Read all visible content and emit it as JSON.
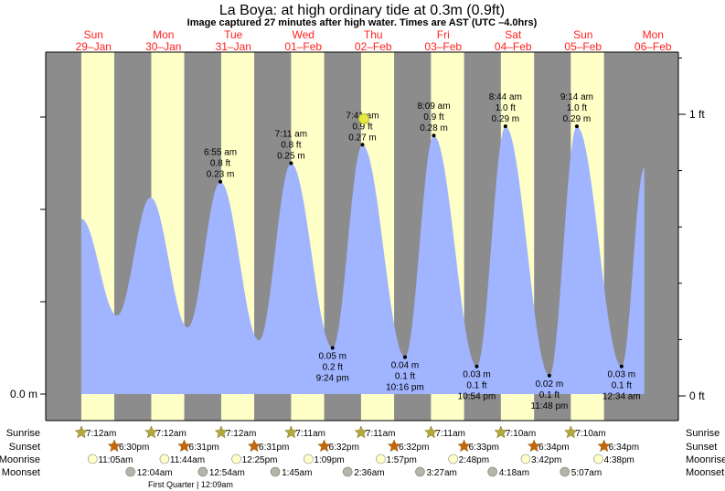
{
  "title": "La Boya: at high  ordinary tide at 0.3m (0.9ft)",
  "subtitle": "Image captured 27 minutes after high water. Times are AST (UTC –4.0hrs)",
  "colors": {
    "tide": "#a0b4ff",
    "night": "#8c8c8c",
    "day": "#ffffc8",
    "day_label": "#ff2020",
    "sunrise": "#b4aa3c",
    "sunset": "#c8640a",
    "moonrise": "#ffffc8",
    "moonset": "#b4b4aa",
    "now_marker": "#e6e646"
  },
  "days": [
    {
      "dow": "Sun",
      "date": "29–Jan"
    },
    {
      "dow": "Mon",
      "date": "30–Jan"
    },
    {
      "dow": "Tue",
      "date": "31–Jan"
    },
    {
      "dow": "Wed",
      "date": "01–Feb"
    },
    {
      "dow": "Thu",
      "date": "02–Feb"
    },
    {
      "dow": "Fri",
      "date": "03–Feb"
    },
    {
      "dow": "Sat",
      "date": "04–Feb"
    },
    {
      "dow": "Sun",
      "date": "05–Feb"
    },
    {
      "dow": "Mon",
      "date": "06–Feb"
    }
  ],
  "axes": {
    "left_label": "0.0 m",
    "right_top": "1 ft",
    "right_bottom": "0 ft"
  },
  "row_labels": {
    "sunrise": "Sunrise",
    "sunset": "Sunset",
    "moonrise": "Moonrise",
    "moonset": "Moonset"
  },
  "sunrise": [
    "7:12am",
    "7:12am",
    "7:12am",
    "7:11am",
    "7:11am",
    "7:11am",
    "7:10am",
    "7:10am"
  ],
  "sunset": [
    "6:30pm",
    "6:31pm",
    "6:31pm",
    "6:32pm",
    "6:32pm",
    "6:33pm",
    "6:34pm",
    "6:34pm"
  ],
  "moonrise": [
    "11:05am",
    "11:44am",
    "12:25pm",
    "1:09pm",
    "1:57pm",
    "2:48pm",
    "3:42pm",
    "4:38pm"
  ],
  "moonset": [
    "12:04am",
    "12:54am",
    "1:45am",
    "2:36am",
    "3:27am",
    "4:18am",
    "5:07am"
  ],
  "moon_phase": "First Quarter | 12:09am",
  "chart_data": {
    "type": "area",
    "x_unit": "days from 29-Jan 00:00",
    "y_unit": "m",
    "ylim_m": [
      0,
      0.32
    ],
    "extremes": [
      {
        "t": 0.3,
        "h": 0.19,
        "kind": "start"
      },
      {
        "t": 0.81,
        "h": 0.085,
        "kind": "low"
      },
      {
        "t": 1.29,
        "h": 0.213,
        "kind": "high"
      },
      {
        "t": 1.82,
        "h": 0.072,
        "kind": "low"
      },
      {
        "t": 2.288,
        "h": 0.23,
        "kind": "high",
        "time": "6:55 am",
        "ft": "0.8 ft",
        "m": "0.23 m"
      },
      {
        "t": 2.84,
        "h": 0.058,
        "kind": "low"
      },
      {
        "t": 3.299,
        "h": 0.25,
        "kind": "high",
        "time": "7:11 am",
        "ft": "0.8 ft",
        "m": "0.25 m"
      },
      {
        "t": 3.892,
        "h": 0.05,
        "kind": "low",
        "time": "9:24 pm",
        "ft": "0.2 ft",
        "m": "0.05 m"
      },
      {
        "t": 4.32,
        "h": 0.27,
        "kind": "high",
        "time": "7:41 am",
        "ft": "0.9 ft",
        "m": "0.27 m"
      },
      {
        "t": 4.928,
        "h": 0.04,
        "kind": "low",
        "time": "10:16 pm",
        "ft": "0.1 ft",
        "m": "0.04 m"
      },
      {
        "t": 5.34,
        "h": 0.28,
        "kind": "high",
        "time": "8:09 am",
        "ft": "0.9 ft",
        "m": "0.28 m"
      },
      {
        "t": 5.954,
        "h": 0.03,
        "kind": "low",
        "time": "10:54 pm",
        "ft": "0.1 ft",
        "m": "0.03 m"
      },
      {
        "t": 6.364,
        "h": 0.29,
        "kind": "high",
        "time": "8:44 am",
        "ft": "1.0 ft",
        "m": "0.29 m"
      },
      {
        "t": 6.992,
        "h": 0.02,
        "kind": "low",
        "time": "11:48 pm",
        "ft": "0.1 ft",
        "m": "0.02 m"
      },
      {
        "t": 7.385,
        "h": 0.29,
        "kind": "high",
        "time": "9:14 am",
        "ft": "1.0 ft",
        "m": "0.29 m"
      },
      {
        "t": 8.024,
        "h": 0.03,
        "kind": "low",
        "time": "12:34 am",
        "ft": "0.1 ft",
        "m": "0.03 m"
      },
      {
        "t": 8.35,
        "h": 0.245,
        "kind": "end"
      }
    ],
    "now_t": 4.339
  }
}
